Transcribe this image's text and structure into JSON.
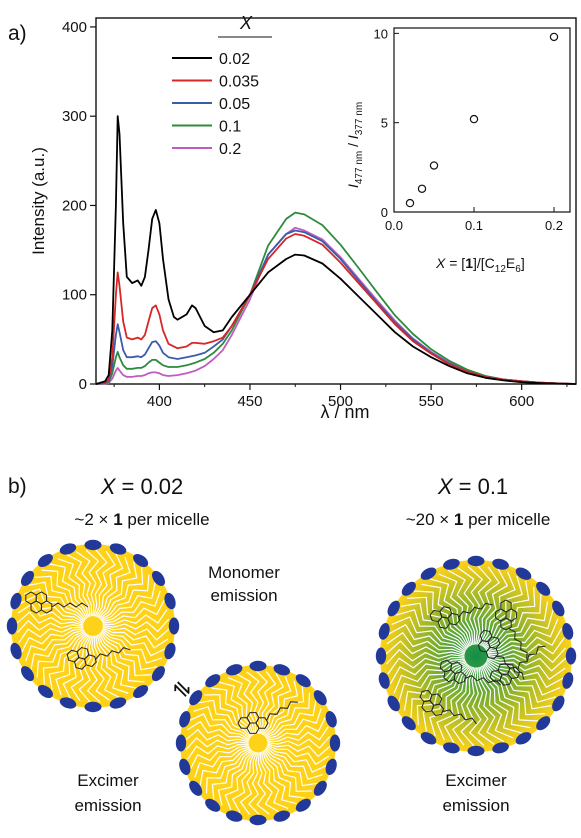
{
  "panel_a": {
    "label": "a)",
    "legend_title": "X",
    "chart_data": {
      "type": "line",
      "xlabel": "λ / nm",
      "ylabel": "Intensity (a.u.)",
      "xlim": [
        365,
        630
      ],
      "ylim": [
        0,
        410
      ],
      "xticks": [
        400,
        450,
        500,
        550,
        600
      ],
      "yticks": [
        0,
        100,
        200,
        300,
        400
      ],
      "legend_position": "top-left",
      "series": [
        {
          "name": "0.02",
          "color": "#000000",
          "x": [
            365,
            370,
            372,
            374,
            376,
            377,
            378,
            380,
            382,
            385,
            388,
            390,
            392,
            394,
            396,
            398,
            400,
            402,
            405,
            408,
            410,
            415,
            418,
            420,
            425,
            430,
            435,
            440,
            450,
            460,
            470,
            475,
            480,
            490,
            500,
            510,
            520,
            530,
            540,
            550,
            560,
            570,
            580,
            590,
            600,
            610,
            620,
            630
          ],
          "y": [
            0,
            3,
            10,
            60,
            200,
            300,
            280,
            180,
            120,
            113,
            116,
            110,
            120,
            150,
            185,
            195,
            180,
            140,
            95,
            75,
            72,
            78,
            88,
            85,
            65,
            58,
            60,
            75,
            100,
            125,
            140,
            145,
            144,
            135,
            118,
            98,
            78,
            58,
            42,
            30,
            20,
            12,
            7,
            4,
            2,
            1,
            0.5,
            0
          ]
        },
        {
          "name": "0.035",
          "color": "#d62728",
          "x": [
            365,
            370,
            372,
            374,
            376,
            377,
            378,
            380,
            382,
            385,
            388,
            390,
            392,
            394,
            396,
            398,
            400,
            402,
            405,
            410,
            415,
            418,
            420,
            425,
            430,
            435,
            440,
            450,
            460,
            470,
            475,
            480,
            490,
            500,
            510,
            520,
            530,
            540,
            550,
            560,
            570,
            580,
            590,
            600,
            610,
            620,
            630
          ],
          "y": [
            0,
            2,
            5,
            30,
            100,
            125,
            110,
            70,
            52,
            50,
            52,
            50,
            55,
            70,
            85,
            88,
            78,
            60,
            45,
            40,
            42,
            46,
            46,
            45,
            48,
            52,
            65,
            100,
            140,
            163,
            168,
            166,
            156,
            136,
            113,
            90,
            67,
            48,
            34,
            22,
            14,
            8,
            5,
            3,
            1.5,
            0.7,
            0
          ]
        },
        {
          "name": "0.05",
          "color": "#3b5bab",
          "x": [
            365,
            370,
            372,
            374,
            376,
            377,
            378,
            380,
            382,
            385,
            388,
            390,
            392,
            394,
            396,
            398,
            400,
            402,
            405,
            410,
            415,
            420,
            425,
            430,
            435,
            440,
            450,
            460,
            470,
            475,
            480,
            490,
            500,
            510,
            520,
            530,
            540,
            550,
            560,
            570,
            580,
            590,
            600,
            610,
            620,
            630
          ],
          "y": [
            0,
            1,
            3,
            20,
            55,
            67,
            58,
            38,
            30,
            30,
            31,
            30,
            33,
            40,
            47,
            48,
            43,
            35,
            30,
            28,
            30,
            32,
            35,
            42,
            50,
            65,
            100,
            145,
            168,
            172,
            170,
            160,
            140,
            116,
            92,
            69,
            50,
            35,
            23,
            14,
            8,
            5,
            3,
            1.5,
            0.7,
            0
          ]
        },
        {
          "name": "0.1",
          "color": "#2e8b3e",
          "x": [
            365,
            370,
            372,
            374,
            376,
            377,
            378,
            380,
            382,
            385,
            388,
            390,
            392,
            394,
            396,
            398,
            400,
            402,
            405,
            410,
            415,
            420,
            425,
            430,
            435,
            440,
            450,
            460,
            470,
            475,
            480,
            490,
            500,
            510,
            520,
            530,
            540,
            550,
            560,
            570,
            580,
            590,
            600,
            610,
            620,
            630
          ],
          "y": [
            0,
            1,
            2,
            12,
            30,
            36,
            30,
            21,
            17,
            17,
            18,
            18,
            20,
            24,
            27,
            27,
            24,
            21,
            19,
            19,
            21,
            24,
            28,
            35,
            45,
            60,
            100,
            155,
            185,
            192,
            190,
            178,
            156,
            130,
            103,
            77,
            56,
            39,
            26,
            16,
            9,
            5,
            3,
            1.5,
            0.7,
            0
          ]
        },
        {
          "name": "0.2",
          "color": "#c05cc0",
          "x": [
            365,
            370,
            372,
            374,
            376,
            377,
            378,
            380,
            382,
            385,
            388,
            390,
            392,
            394,
            396,
            398,
            400,
            402,
            405,
            410,
            415,
            420,
            425,
            430,
            435,
            440,
            450,
            460,
            470,
            475,
            480,
            490,
            500,
            510,
            520,
            530,
            540,
            550,
            560,
            570,
            580,
            590,
            600,
            610,
            620,
            630
          ],
          "y": [
            0,
            0.5,
            1,
            6,
            15,
            18,
            15,
            10,
            8,
            8,
            9,
            9,
            10,
            12,
            13,
            13,
            12,
            10,
            9,
            10,
            12,
            15,
            20,
            28,
            38,
            55,
            95,
            145,
            168,
            175,
            172,
            162,
            142,
            118,
            94,
            71,
            51,
            36,
            24,
            15,
            9,
            5,
            3,
            1.5,
            0.7,
            0
          ]
        }
      ]
    },
    "inset": {
      "chart_data": {
        "type": "scatter",
        "xlim": [
          0,
          0.22
        ],
        "ylim": [
          0,
          10.3
        ],
        "xticks": [
          "0.0",
          "0.1",
          "0.2"
        ],
        "yticks": [
          "0",
          "5",
          "10"
        ],
        "points": [
          {
            "x": 0.02,
            "y": 0.5
          },
          {
            "x": 0.035,
            "y": 1.3
          },
          {
            "x": 0.05,
            "y": 2.6
          },
          {
            "x": 0.1,
            "y": 5.2
          },
          {
            "x": 0.2,
            "y": 9.8
          }
        ]
      },
      "ylabel": {
        "i1": "I",
        "s1": "477 nm",
        "slash": " / ",
        "i2": "I",
        "s2": "377 nm"
      },
      "xlabel": {
        "var": "X",
        "eq": " = [",
        "one": "1",
        "mid": "]/[C",
        "s12": "12",
        "e": "E",
        "s6": "6",
        "end": "]"
      }
    }
  },
  "panel_b": {
    "label": "b)",
    "left": {
      "x_var": "X",
      "x_eq": " = 0.02",
      "sub_prefix": "~2 × ",
      "sub_bold": "1",
      "sub_suffix": " per micelle",
      "monomer_line1": "Monomer",
      "monomer_line2": "emission",
      "excimer_line1": "Excimer",
      "excimer_line2": "emission",
      "equilibrium_symbol": "⇌"
    },
    "right": {
      "x_var": "X",
      "x_eq": " = 0.1",
      "sub_prefix": "~20 × ",
      "sub_bold": "1",
      "sub_suffix": " per micelle",
      "excimer_line1": "Excimer",
      "excimer_line2": "emission"
    },
    "colors": {
      "micelle_core": "#ffd21a",
      "headgroup": "#23399a",
      "excimer_center": "#0f8f4a",
      "tail": "#ffffff"
    }
  }
}
